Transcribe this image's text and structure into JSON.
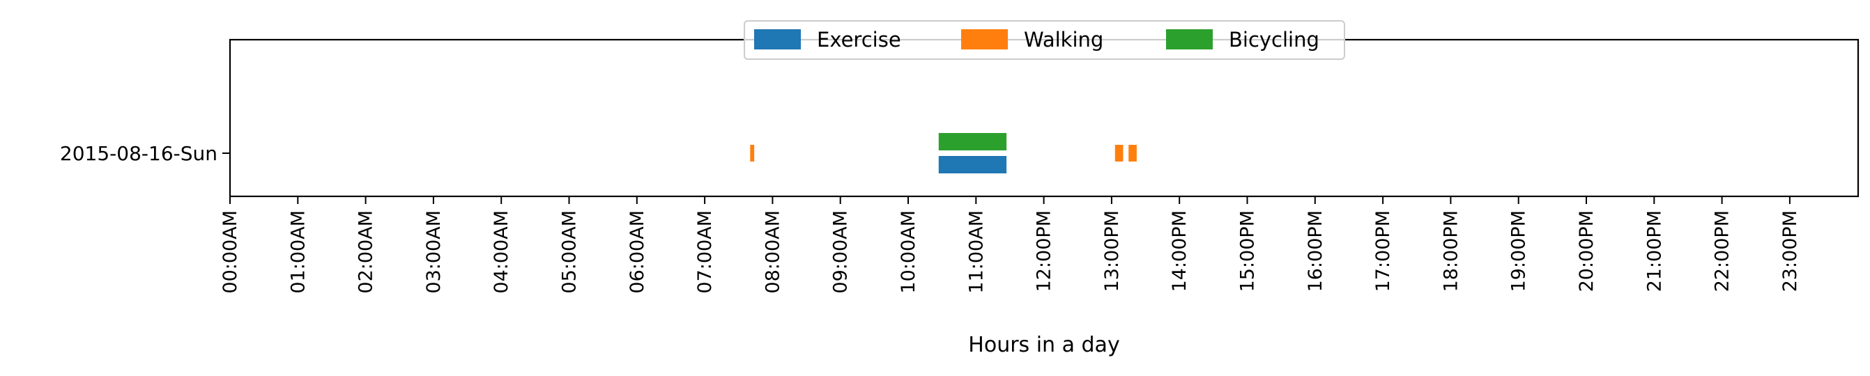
{
  "chart_data": {
    "type": "timeline",
    "title": "",
    "xlabel": "Hours in a day",
    "ylabel": "",
    "xlim": [
      0,
      24
    ],
    "x_ticks": [
      "00:00AM",
      "01:00AM",
      "02:00AM",
      "03:00AM",
      "04:00AM",
      "05:00AM",
      "06:00AM",
      "07:00AM",
      "08:00AM",
      "09:00AM",
      "10:00AM",
      "11:00AM",
      "12:00PM",
      "13:00PM",
      "14:00PM",
      "15:00PM",
      "16:00PM",
      "17:00PM",
      "18:00PM",
      "19:00PM",
      "20:00PM",
      "21:00PM",
      "22:00PM",
      "23:00PM"
    ],
    "categories": [
      "2015-08-16-Sun"
    ],
    "legend_position": "top-center",
    "grid": false,
    "series": [
      {
        "name": "Exercise",
        "color": "#1f77b4",
        "lane": "lower",
        "intervals": [
          {
            "start": 10.45,
            "end": 11.45
          }
        ]
      },
      {
        "name": "Walking",
        "color": "#ff7f0e",
        "lane": "middle",
        "intervals": [
          {
            "start": 7.67,
            "end": 7.73
          },
          {
            "start": 13.05,
            "end": 13.17
          },
          {
            "start": 13.25,
            "end": 13.37
          }
        ]
      },
      {
        "name": "Bicycling",
        "color": "#2ca02c",
        "lane": "upper",
        "intervals": [
          {
            "start": 10.45,
            "end": 11.45
          }
        ]
      }
    ]
  }
}
